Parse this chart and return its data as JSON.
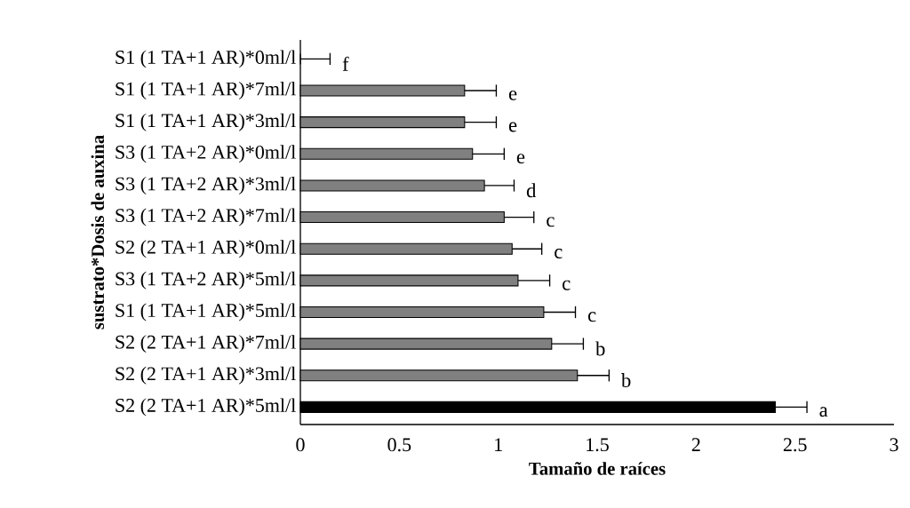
{
  "chart_data": {
    "type": "bar",
    "orientation": "horizontal",
    "xlabel": "Tamaño de raíces",
    "ylabel": "sustrato*Dosis de auxina",
    "categories": [
      "S1 (1 TA+1 AR)*0ml/l",
      "S1 (1 TA+1 AR)*7ml/l",
      "S1 (1 TA+1 AR)*3ml/l",
      "S3 (1 TA+2 AR)*0ml/l",
      "S3 (1 TA+2 AR)*3ml/l",
      "S3 (1 TA+2 AR)*7ml/l",
      "S2 (2 TA+1 AR)*0ml/l",
      "S3 (1 TA+2 AR)*5ml/l",
      "S1 (1 TA+1 AR)*5ml/l",
      "S2 (2 TA+1 AR)*7ml/l",
      "S2 (2 TA+1 AR)*3ml/l",
      "S2 (2 TA+1 AR)*5ml/l"
    ],
    "values": [
      0,
      0.83,
      0.83,
      0.87,
      0.93,
      1.03,
      1.07,
      1.1,
      1.23,
      1.27,
      1.4,
      2.4
    ],
    "errors": [
      [
        0,
        0.15
      ],
      [
        0.83,
        0.99
      ],
      [
        0.83,
        0.99
      ],
      [
        0.87,
        1.03
      ],
      [
        0.93,
        1.08
      ],
      [
        1.03,
        1.18
      ],
      [
        1.07,
        1.22
      ],
      [
        1.1,
        1.26
      ],
      [
        1.23,
        1.39
      ],
      [
        1.27,
        1.43
      ],
      [
        1.4,
        1.56
      ],
      [
        2.4,
        2.56
      ]
    ],
    "value_labels": [
      "f",
      "e",
      "e",
      "e",
      "d",
      "c",
      "c",
      "c",
      "c",
      "b",
      "b",
      "a"
    ],
    "colors": [
      "#808080",
      "#808080",
      "#808080",
      "#808080",
      "#808080",
      "#808080",
      "#808080",
      "#808080",
      "#808080",
      "#808080",
      "#808080",
      "#000000"
    ],
    "xlim": [
      0,
      3
    ],
    "xticks": [
      0,
      0.5,
      1,
      1.5,
      2,
      2.5,
      3
    ],
    "grid": false
  }
}
